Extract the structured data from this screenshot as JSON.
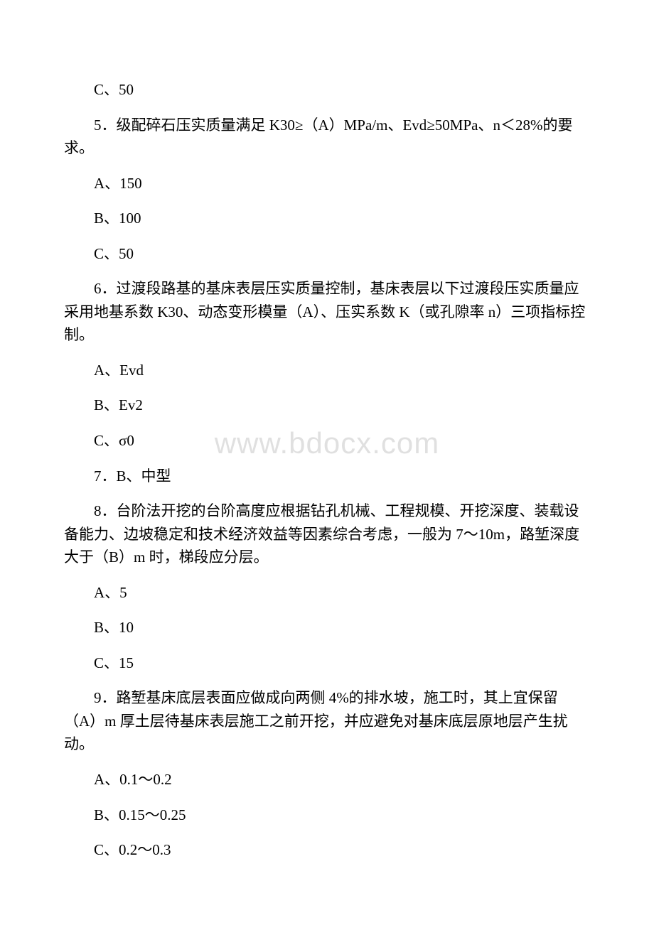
{
  "watermark": "www.bdocx.com",
  "lines": [
    "C、50",
    "5．级配碎石压实质量满足 K30≥（A）MPa/m、Evd≥50MPa、n＜28%的要求。",
    "A、150",
    "B、100",
    "C、50",
    "6．过渡段路基的基床表层压实质量控制，基床表层以下过渡段压实质量应采用地基系数 K30、动态变形模量（A）、压实系数 K（或孔隙率 n）三项指标控制。",
    "A、Evd",
    "B、Ev2",
    "C、σ0",
    "7．B、中型",
    "8．台阶法开挖的台阶高度应根据钻孔机械、工程规模、开挖深度、装载设备能力、边坡稳定和技术经济效益等因素综合考虑，一般为 7～10m，路堑深度大于（B）m 时，梯段应分层。",
    "A、5",
    "B、10",
    "C、15",
    "9．路堑基床底层表面应做成向两侧 4%的排水坡，施工时，其上宜保留（A）m 厚土层待基床表层施工之前开挖，并应避免对基床底层原地层产生扰动。",
    "A、0.1～0.2",
    "B、0.15～0.25",
    "C、0.2～0.3"
  ],
  "paragraphClasses": [
    "para-option",
    "para",
    "para-option",
    "para-option",
    "para-option",
    "para",
    "para-option",
    "para-option",
    "para-option",
    "para-option",
    "para",
    "para-option",
    "para-option",
    "para-option",
    "para",
    "para-option",
    "para-option",
    "para-option"
  ]
}
